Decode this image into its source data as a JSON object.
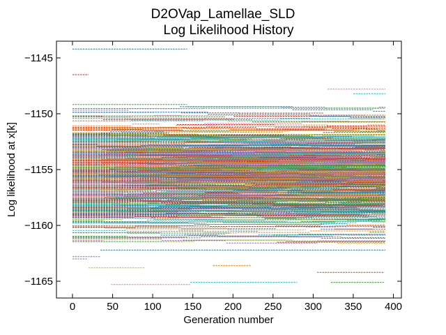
{
  "chart_data": {
    "type": "line",
    "title": "D2OVap_Lamellae_SLD",
    "subtitle": "Log Likelihood History",
    "xlabel": "Generation number",
    "ylabel": "Log likelihood at x[k]",
    "xlim": [
      -20,
      410
    ],
    "ylim": [
      -1166.5,
      -1143.5
    ],
    "xticks": [
      0,
      50,
      100,
      150,
      200,
      250,
      300,
      350,
      400
    ],
    "yticks": [
      -1145,
      -1150,
      -1155,
      -1160,
      -1165
    ],
    "ytick_labels": [
      "−1145",
      "−1150",
      "−1155",
      "−1160",
      "−1165"
    ],
    "grid": false,
    "legend": "none",
    "x_range": [
      0,
      390
    ],
    "n_chains": 420,
    "density_range": [
      -1163.5,
      -1147
    ],
    "sparse_segments": [
      {
        "y": -1144.2,
        "x0": 0,
        "x1": 143
      },
      {
        "y": -1146.5,
        "x0": 0,
        "x1": 20
      },
      {
        "y": -1165.3,
        "x0": 48,
        "x1": 147
      },
      {
        "y": -1165.1,
        "x0": 147,
        "x1": 280
      },
      {
        "y": -1165.1,
        "x0": 322,
        "x1": 388
      },
      {
        "y": -1164.2,
        "x0": 305,
        "x1": 388
      },
      {
        "y": -1163.8,
        "x0": 20,
        "x1": 90
      },
      {
        "y": -1163.6,
        "x0": 175,
        "x1": 222
      },
      {
        "y": -1162.8,
        "x0": 0,
        "x1": 35
      },
      {
        "y": -1163.0,
        "x0": 0,
        "x1": 18
      },
      {
        "y": -1162.2,
        "x0": 35,
        "x1": 390
      },
      {
        "y": -1161.5,
        "x0": 255,
        "x1": 390
      },
      {
        "y": -1147.8,
        "x0": 318,
        "x1": 390
      },
      {
        "y": -1148.2,
        "x0": 350,
        "x1": 390
      }
    ],
    "colors": [
      "#1f77b4",
      "#ff7f0e",
      "#2ca02c",
      "#d62728",
      "#9467bd",
      "#8c564b",
      "#e377c2",
      "#7f7f7f",
      "#bcbd22",
      "#17becf"
    ]
  }
}
